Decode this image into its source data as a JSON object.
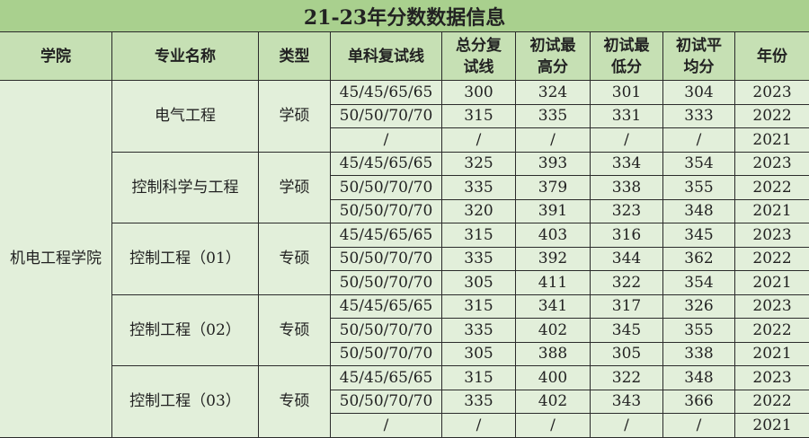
{
  "title": "21-23年分数数据信息",
  "headers": [
    "学院",
    "专业名称",
    "类型",
    "单科复试线",
    "总分复试线",
    "初试最高分",
    "初试最低分",
    "初试平均分",
    "年份"
  ],
  "college": "机电工程学院",
  "majors": [
    {
      "name": "电气工程",
      "type": "学硕",
      "rows": [
        [
          "45/45/65/65",
          "300",
          "324",
          "301",
          "304",
          "2023"
        ],
        [
          "50/50/70/70",
          "315",
          "335",
          "331",
          "333",
          "2022"
        ],
        [
          "/",
          "/",
          "/",
          "/",
          "/",
          "2021"
        ]
      ]
    },
    {
      "name": "控制科学与工程",
      "type": "学硕",
      "rows": [
        [
          "45/45/65/65",
          "325",
          "393",
          "334",
          "354",
          "2023"
        ],
        [
          "50/50/70/70",
          "335",
          "379",
          "338",
          "355",
          "2022"
        ],
        [
          "50/50/70/70",
          "320",
          "391",
          "323",
          "348",
          "2021"
        ]
      ]
    },
    {
      "name": "控制工程（01）",
      "type": "专硕",
      "rows": [
        [
          "45/45/65/65",
          "315",
          "403",
          "316",
          "345",
          "2023"
        ],
        [
          "50/50/70/70",
          "335",
          "392",
          "344",
          "362",
          "2022"
        ],
        [
          "50/50/70/70",
          "305",
          "411",
          "322",
          "354",
          "2021"
        ]
      ]
    },
    {
      "name": "控制工程（02）",
      "type": "专硕",
      "rows": [
        [
          "45/45/65/65",
          "315",
          "341",
          "317",
          "326",
          "2023"
        ],
        [
          "50/50/70/70",
          "335",
          "402",
          "345",
          "355",
          "2022"
        ],
        [
          "50/50/70/70",
          "305",
          "388",
          "305",
          "338",
          "2021"
        ]
      ]
    },
    {
      "name": "控制工程（03）",
      "type": "专硕",
      "rows": [
        [
          "45/45/65/65",
          "315",
          "400",
          "322",
          "348",
          "2023"
        ],
        [
          "50/50/70/70",
          "335",
          "402",
          "343",
          "366",
          "2022"
        ],
        [
          "/",
          "/",
          "/",
          "/",
          "/",
          "2021"
        ]
      ]
    }
  ]
}
